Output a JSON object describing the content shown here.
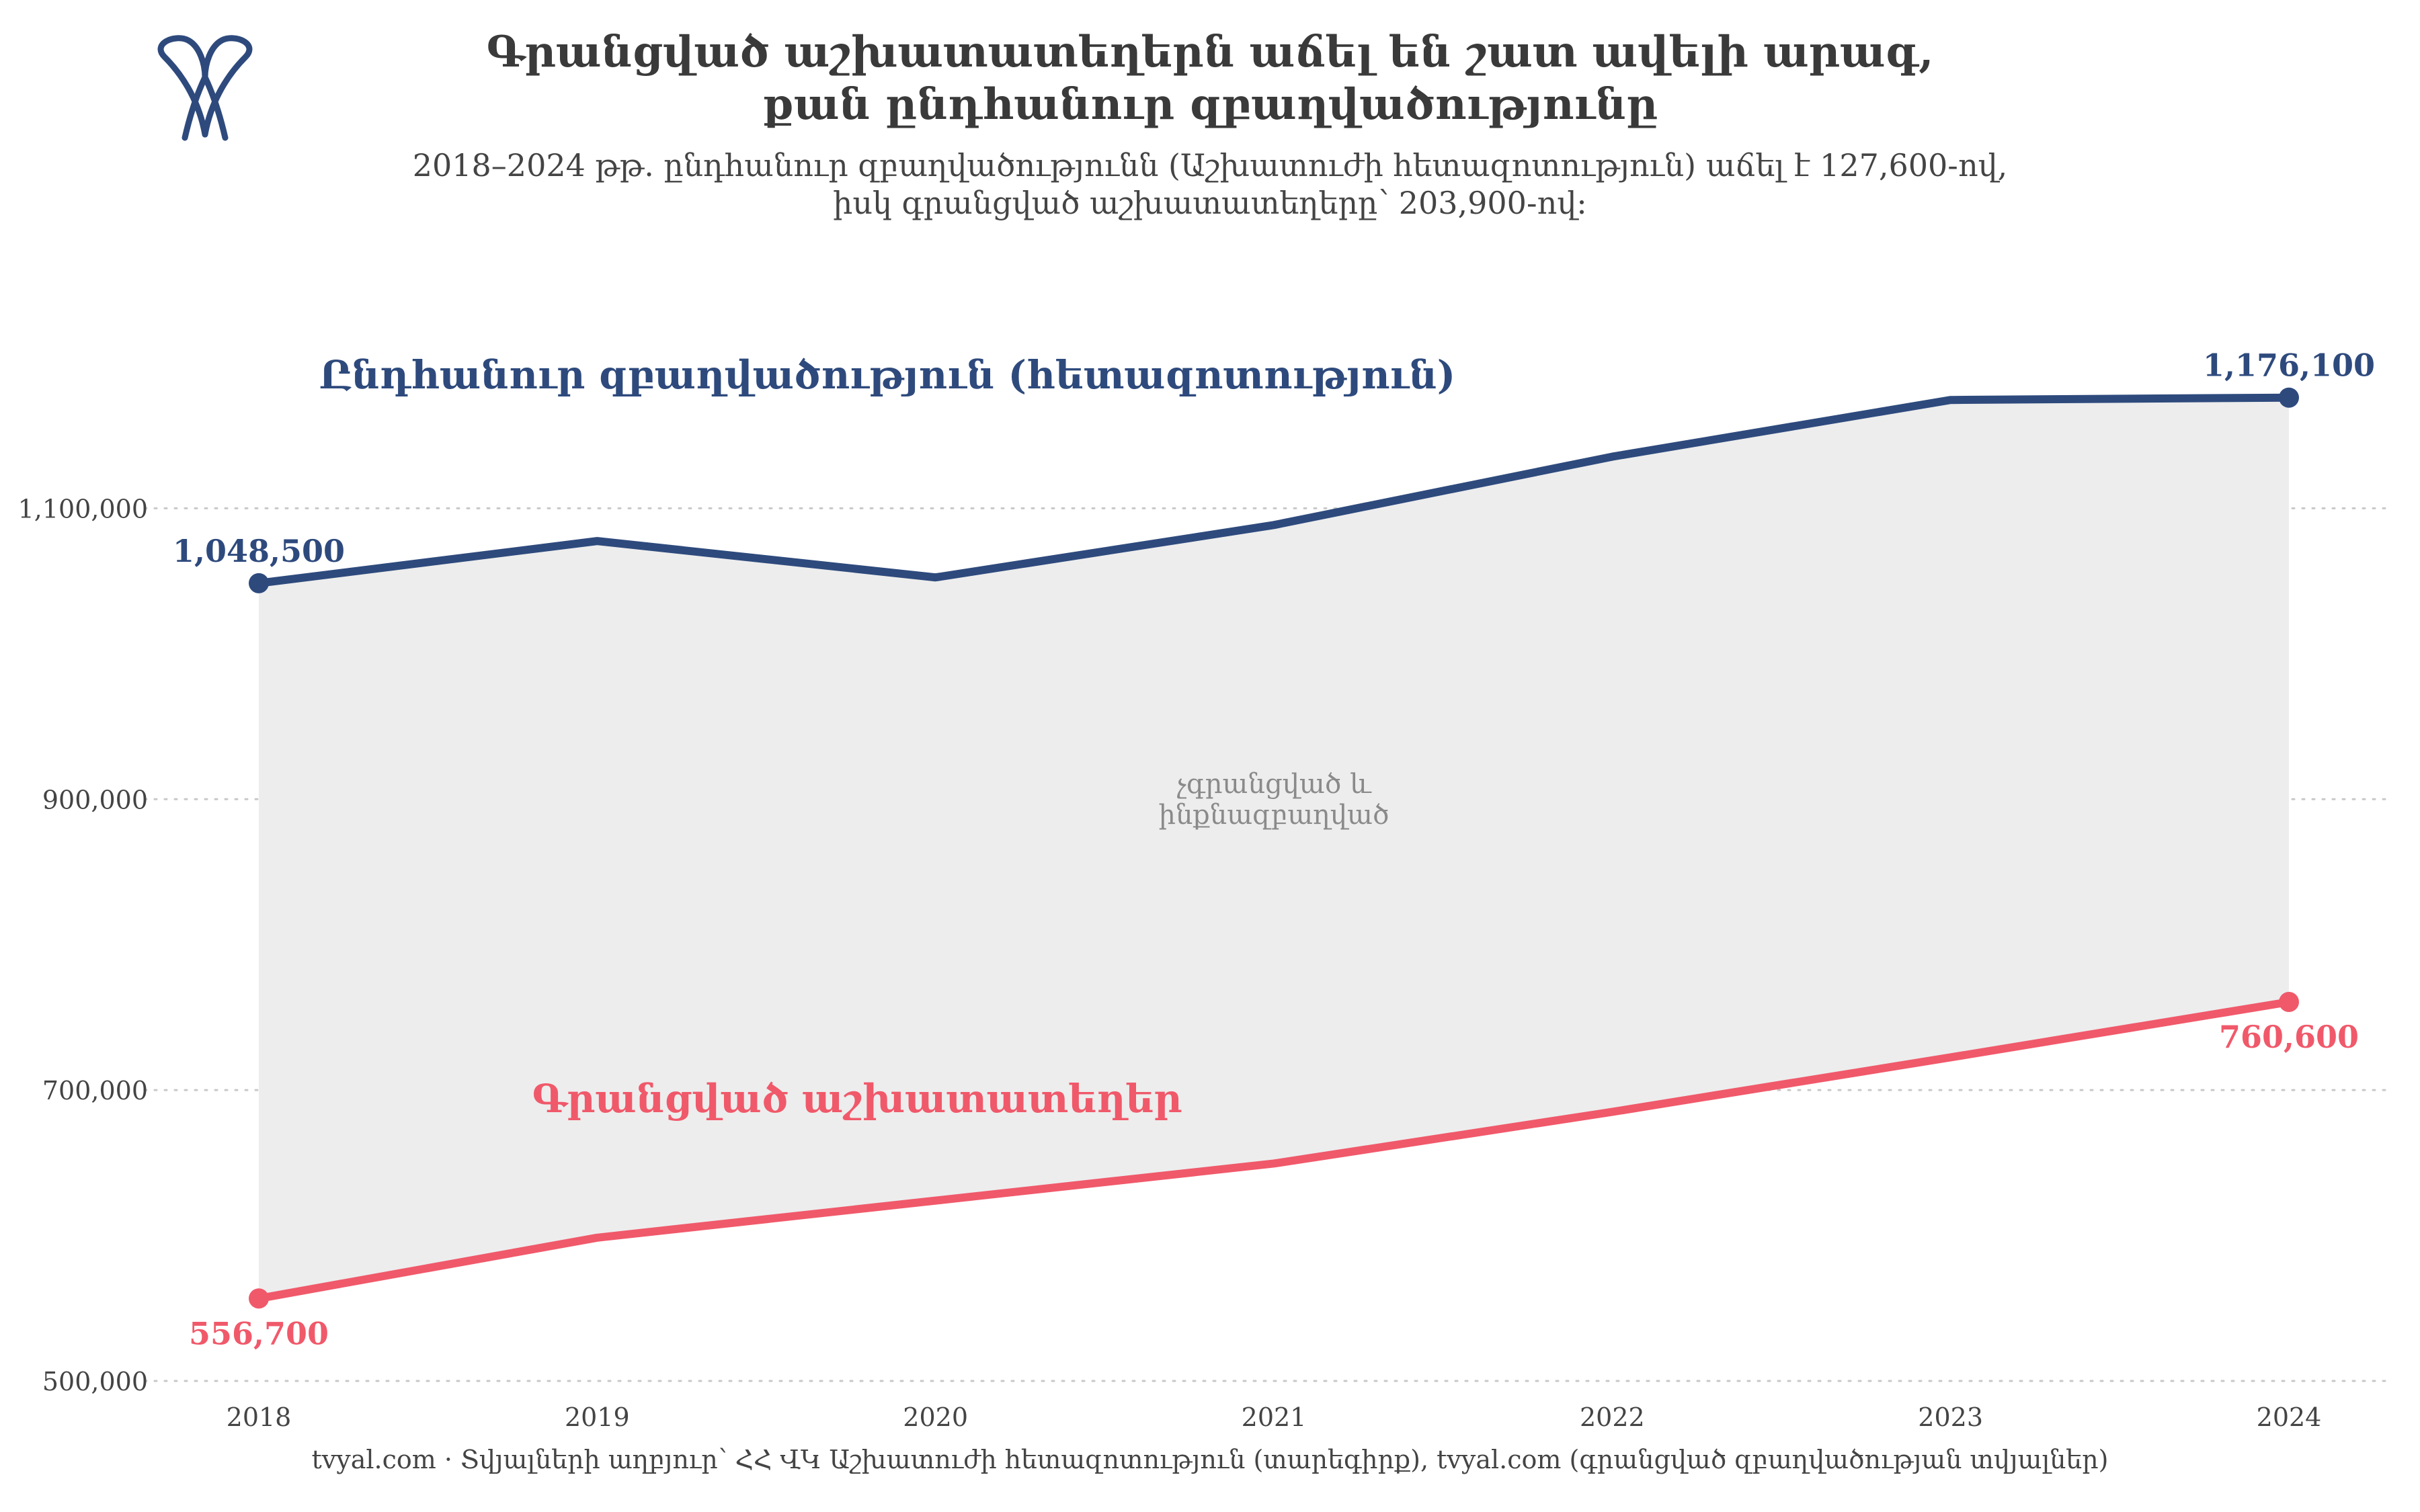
{
  "header": {
    "title_line1": "Գրանցված աշխատատեղերն աճել են շատ ավելի արագ,",
    "title_line2": "քան ընդհանուր զբաղվածությունը",
    "subtitle_line1": "2018–2024 թթ. ընդհանուր զբաղվածությունն (Աշխատուժի հետազոտություն) աճել է 127,600-ով,",
    "subtitle_line2": "իսկ գրանցված աշխատատեղերը՝ 203,900-ով:"
  },
  "footer": {
    "text": "tvyal.com  ·  Տվյալների աղբյուր՝ ՀՀ ՎԿ Աշխատուժի հետազոտություն (տարեգիրք), tvyal.com (գրանցված զբաղվածության տվյալներ)"
  },
  "logo": {
    "icon": "tvyal-logo-icon",
    "color": "#2e4a7d"
  },
  "chart_data": {
    "type": "line",
    "x": [
      2018,
      2019,
      2020,
      2021,
      2022,
      2023,
      2024
    ],
    "ylim": [
      500000,
      1200000
    ],
    "yticks": [
      500000,
      700000,
      900000,
      1100000
    ],
    "ytick_labels": [
      "500,000",
      "700,000",
      "900,000",
      "1,100,000"
    ],
    "grid": "horizontal-dotted",
    "series": [
      {
        "name": "Ընդհանուր զբաղվածություն (հետազոտություն)",
        "color": "#2e4a7d",
        "values": [
          1048500,
          1077500,
          1052500,
          1088500,
          1135500,
          1174500,
          1176100
        ],
        "start_label": "1,048,500",
        "end_label": "1,176,100"
      },
      {
        "name": "Գրանցված աշխատատեղեր",
        "color": "#f0596a",
        "values": [
          556700,
          598500,
          624000,
          649500,
          685000,
          722500,
          760600
        ],
        "start_label": "556,700",
        "end_label": "760,600"
      }
    ],
    "band_label_line1": "չգրանցված և",
    "band_label_line2": "ինքնազբաղված",
    "band_color": "#ededed"
  }
}
